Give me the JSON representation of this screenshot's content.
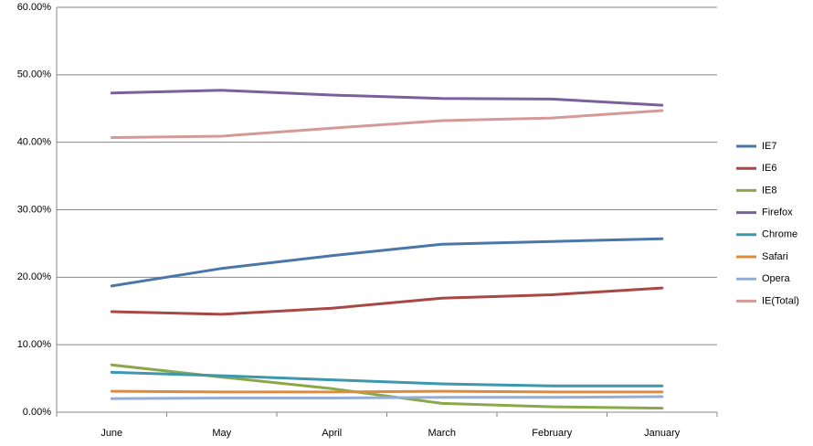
{
  "chart_data": {
    "type": "line",
    "title": "",
    "xlabel": "",
    "ylabel": "",
    "categories": [
      "June",
      "May",
      "April",
      "March",
      "February",
      "January"
    ],
    "ylim": [
      0,
      60
    ],
    "y_ticks": [
      0,
      10,
      20,
      30,
      40,
      50,
      60
    ],
    "y_tick_labels": [
      "0.00%",
      "10.00%",
      "20.00%",
      "30.00%",
      "40.00%",
      "50.00%",
      "60.00%"
    ],
    "grid": "horizontal",
    "legend_position": "right",
    "series": [
      {
        "name": "IE7",
        "color": "#4a76a8",
        "values": [
          18.7,
          21.3,
          23.2,
          24.9,
          25.3,
          25.7
        ]
      },
      {
        "name": "IE6",
        "color": "#a84744",
        "values": [
          14.9,
          14.5,
          15.4,
          16.9,
          17.4,
          18.4
        ]
      },
      {
        "name": "IE8",
        "color": "#8aa84a",
        "values": [
          7.0,
          5.2,
          3.5,
          1.3,
          0.8,
          0.6
        ]
      },
      {
        "name": "Firefox",
        "color": "#7b619b",
        "values": [
          47.3,
          47.7,
          47.0,
          46.5,
          46.4,
          45.5
        ]
      },
      {
        "name": "Chrome",
        "color": "#3d97ad",
        "values": [
          5.9,
          5.4,
          4.8,
          4.2,
          3.9,
          3.9
        ]
      },
      {
        "name": "Safari",
        "color": "#e08b3a",
        "values": [
          3.1,
          3.0,
          3.0,
          3.1,
          3.0,
          3.0
        ]
      },
      {
        "name": "Opera",
        "color": "#93add6",
        "values": [
          2.0,
          2.1,
          2.1,
          2.2,
          2.2,
          2.3
        ]
      },
      {
        "name": "IE(Total)",
        "color": "#d59a97",
        "values": [
          40.7,
          40.9,
          42.1,
          43.2,
          43.6,
          44.7
        ]
      }
    ]
  }
}
